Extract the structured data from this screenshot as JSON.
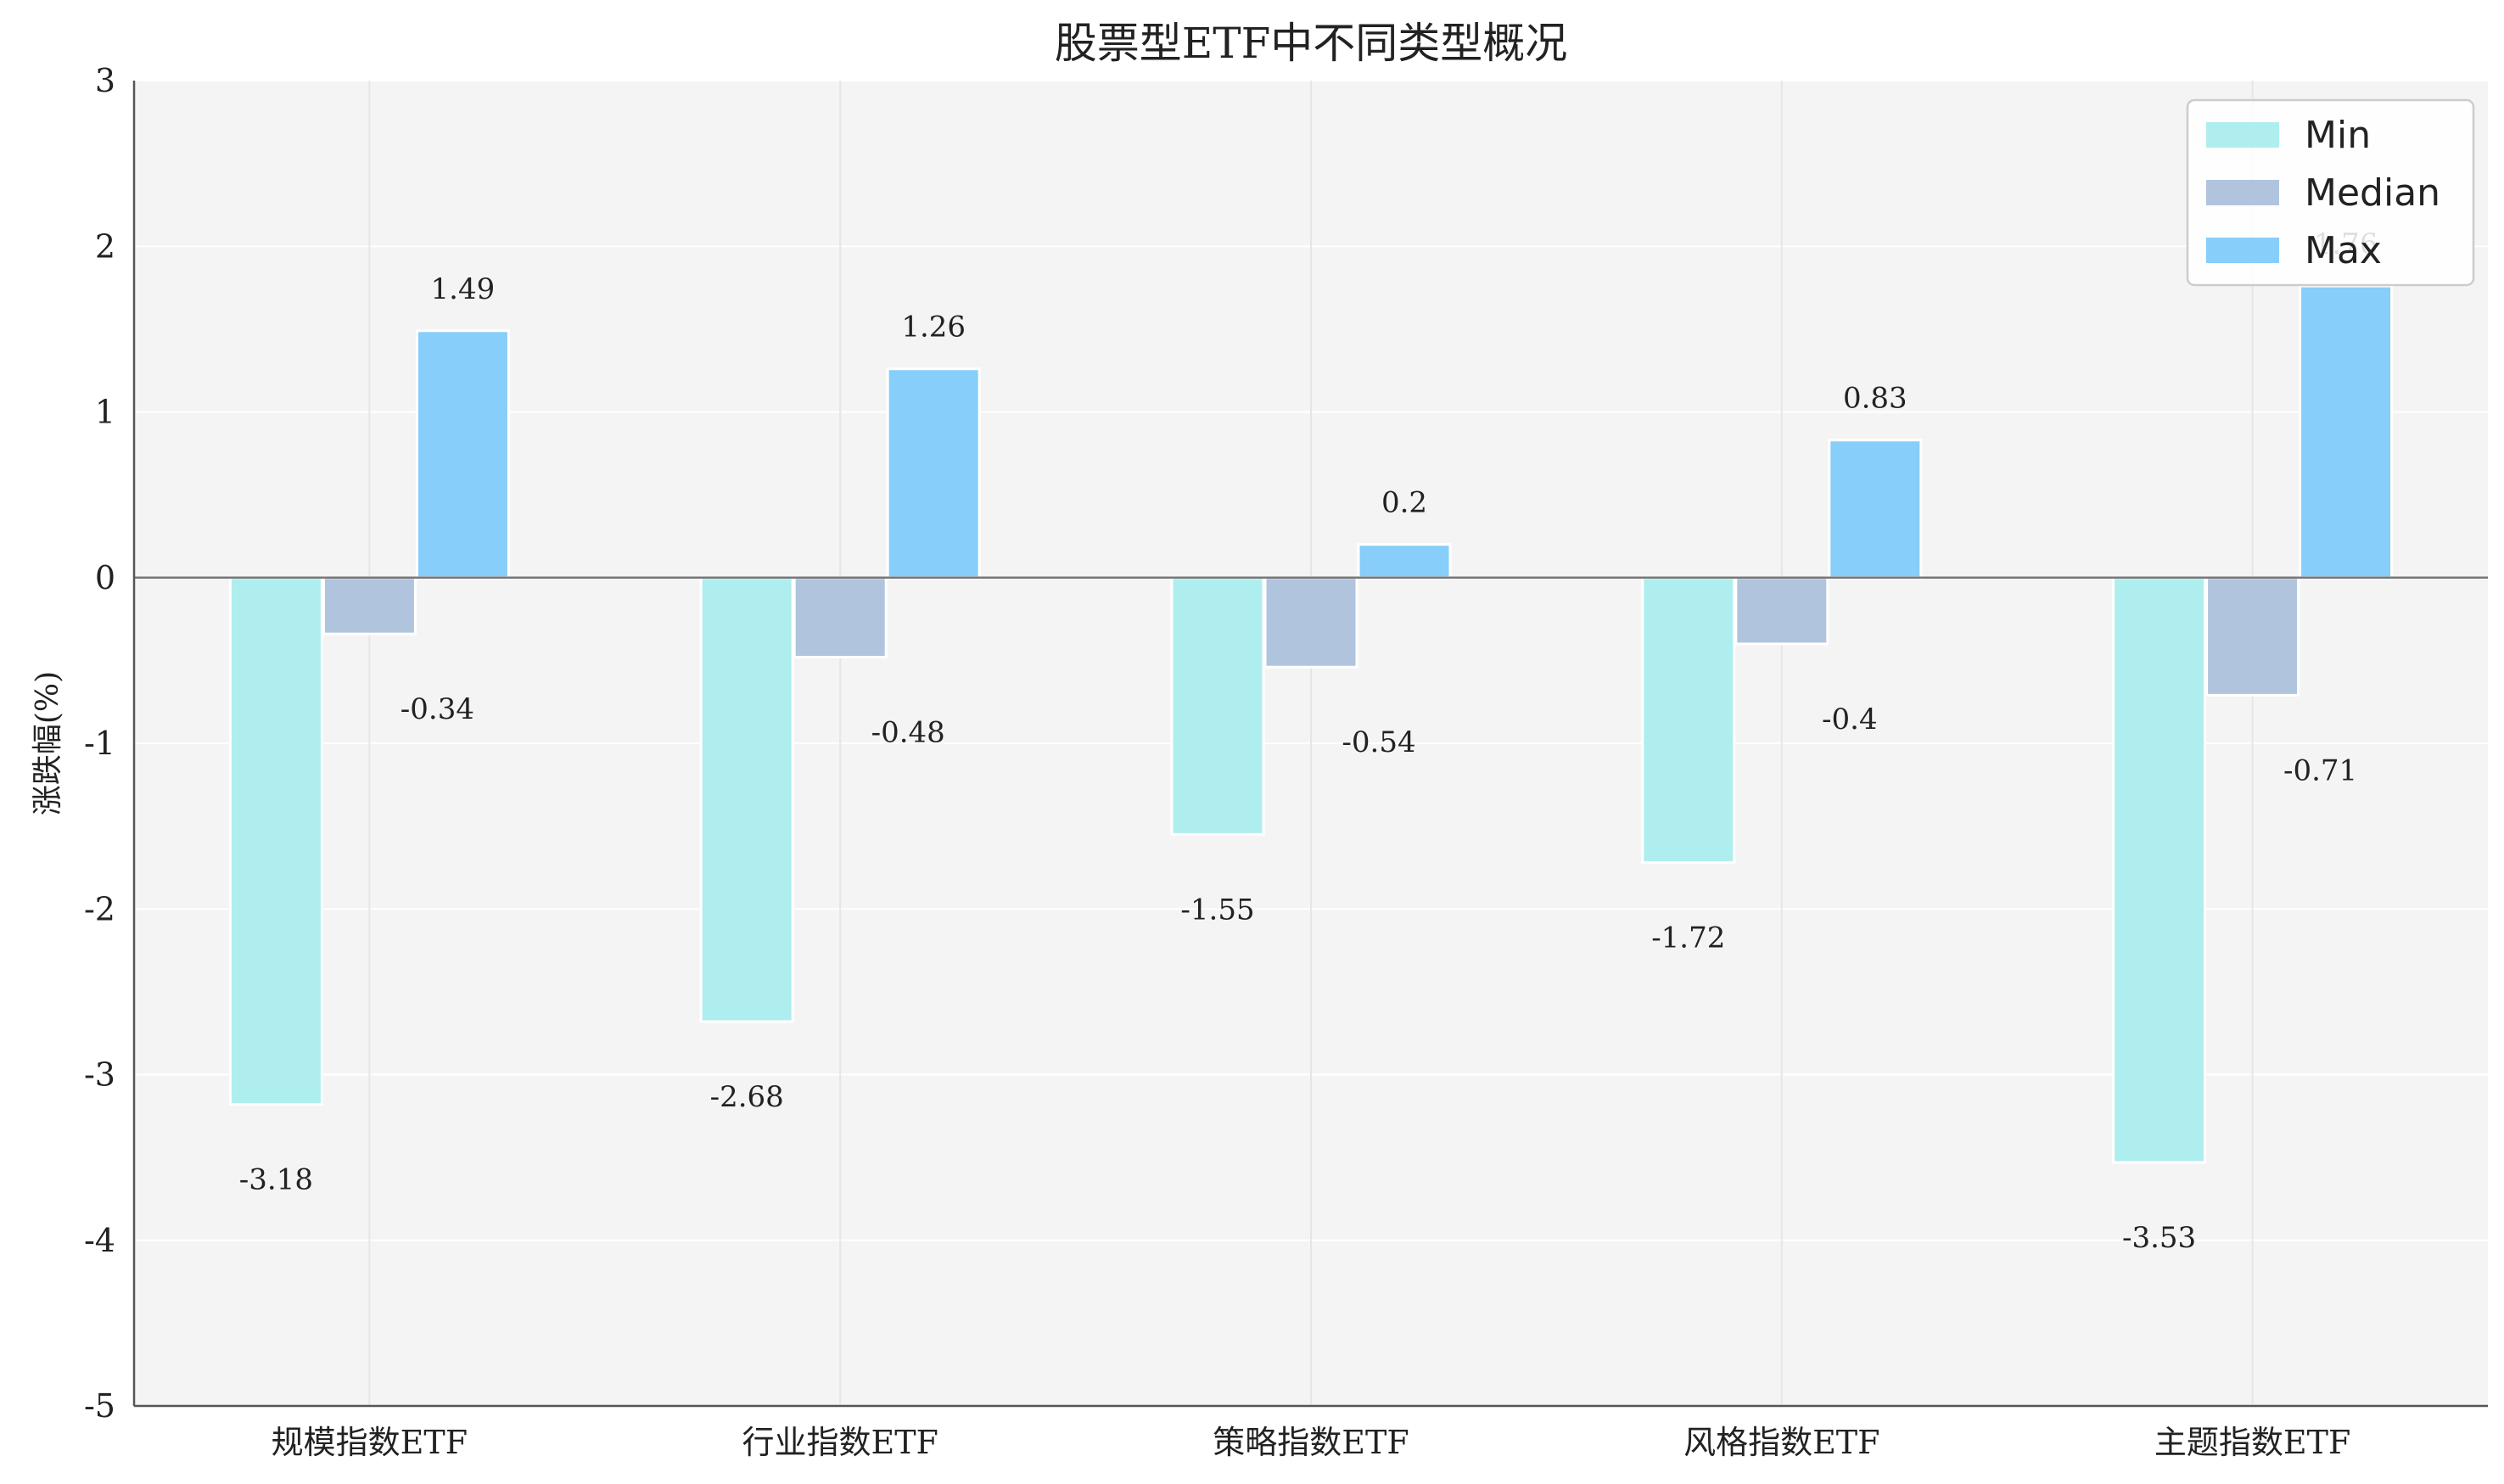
{
  "chart_data": {
    "type": "bar",
    "title": "股票型ETF中不同类型概况",
    "xlabel": "",
    "ylabel": "涨跌幅(%)",
    "categories": [
      "规模指数ETF",
      "行业指数ETF",
      "策略指数ETF",
      "风格指数ETF",
      "主题指数ETF"
    ],
    "series": [
      {
        "name": "Min",
        "values": [
          -3.18,
          -2.68,
          -1.55,
          -1.72,
          -3.53
        ],
        "color": "#AFEEEE"
      },
      {
        "name": "Median",
        "values": [
          -0.34,
          -0.48,
          -0.54,
          -0.4,
          -0.71
        ],
        "color": "#B0C4DE"
      },
      {
        "name": "Max",
        "values": [
          1.49,
          1.26,
          0.2,
          0.83,
          1.76
        ],
        "color": "#87CEFA"
      }
    ],
    "ylim": [
      -5,
      3
    ],
    "yticks": [
      3,
      2,
      1,
      0,
      -1,
      -2,
      -3,
      -4,
      -5
    ],
    "grid": true,
    "legend": "top-right",
    "background": "#F4F4F4"
  }
}
